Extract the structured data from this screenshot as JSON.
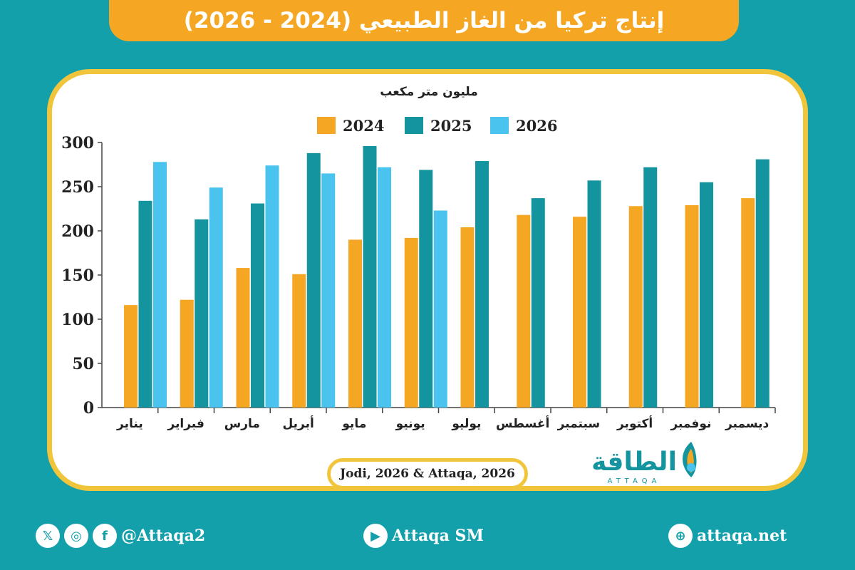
{
  "title": "إنتاج تركيا من الغاز الطبيعي (2024 - 2026)",
  "source": "Jodi, 2026 & Attaqa, 2026",
  "brand": {
    "logo_text": "الطاقة",
    "logo_sub": "ATTAQA"
  },
  "footer": {
    "social_handle": "@Attaqa2",
    "youtube": "Attaqa SM",
    "website": "attaqa.net",
    "icons": [
      "x-icon",
      "instagram-icon",
      "facebook-icon",
      "youtube-icon",
      "globe-icon"
    ]
  },
  "colors": {
    "2024": "#f5a623",
    "2025": "#13949e",
    "2026": "#4bc3ef",
    "accent": "#f0c53c",
    "background": "#13a0ab"
  },
  "chart_data": {
    "type": "bar",
    "ylabel": "مليون متر مكعب",
    "ylim": [
      0,
      300
    ],
    "yticks": [
      0,
      50,
      100,
      150,
      200,
      250,
      300
    ],
    "legend_position": "top",
    "categories": [
      "يناير",
      "فبراير",
      "مارس",
      "أبريل",
      "مايو",
      "يونيو",
      "يوليو",
      "أغسطس",
      "سبتمبر",
      "أكتوبر",
      "نوفمبر",
      "ديسمبر"
    ],
    "series": [
      {
        "name": "2024",
        "values": [
          116,
          122,
          158,
          151,
          190,
          192,
          204,
          218,
          216,
          228,
          229,
          237
        ]
      },
      {
        "name": "2025",
        "values": [
          234,
          213,
          231,
          288,
          296,
          269,
          279,
          237,
          257,
          272,
          255,
          281
        ]
      },
      {
        "name": "2026",
        "values": [
          278,
          249,
          274,
          265,
          272,
          223,
          null,
          null,
          null,
          null,
          null,
          null
        ]
      }
    ]
  }
}
